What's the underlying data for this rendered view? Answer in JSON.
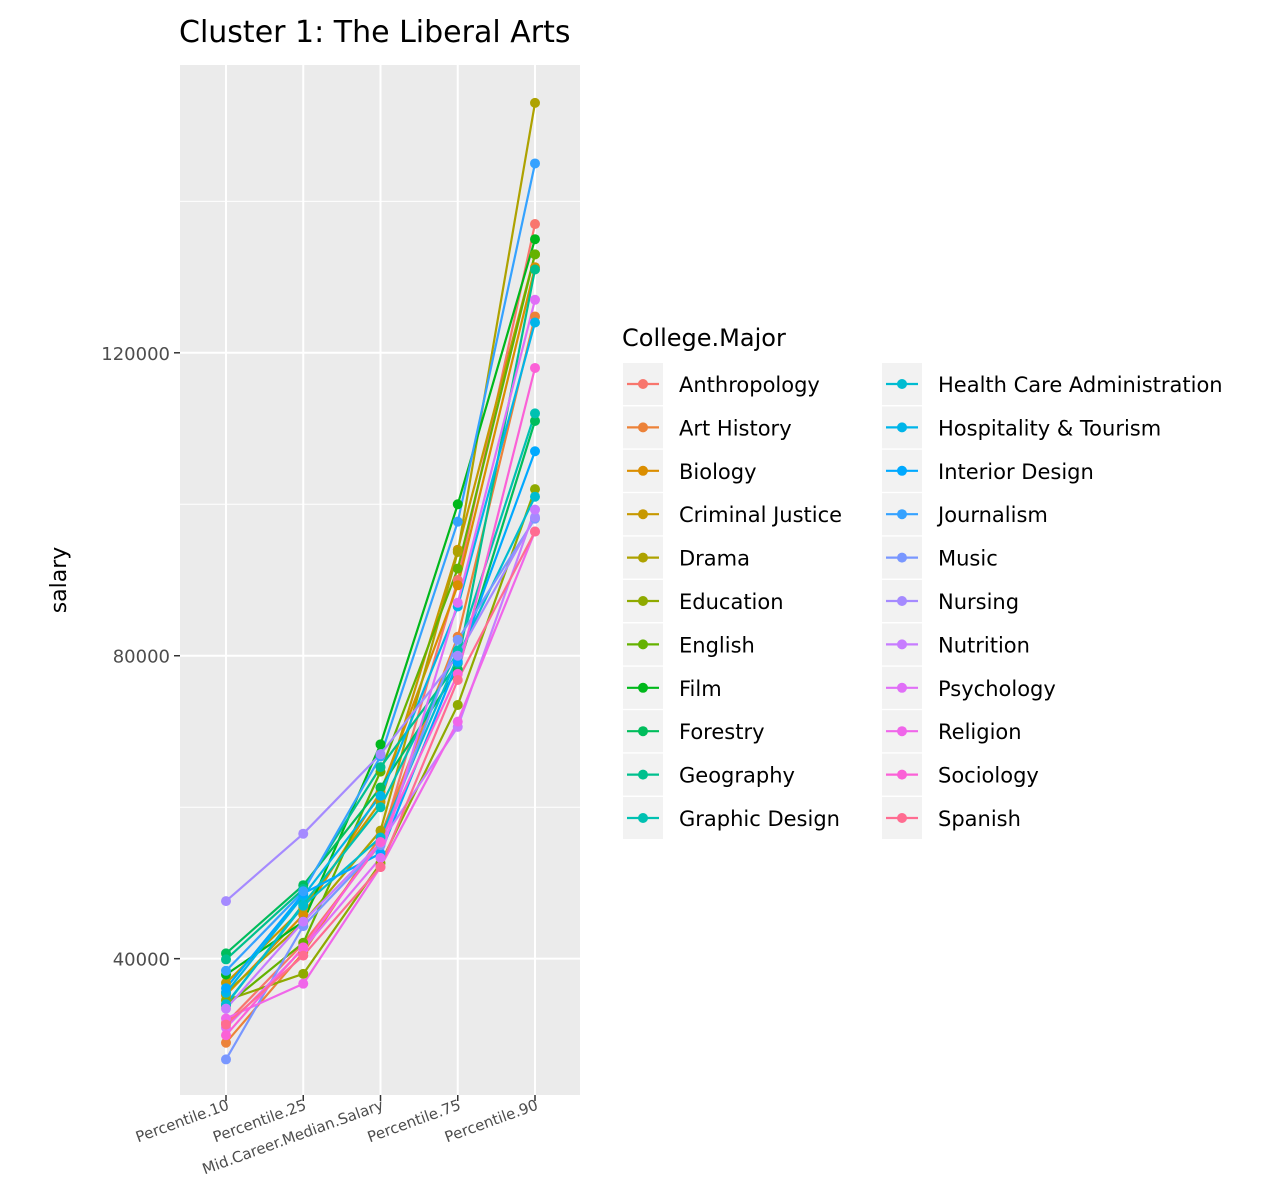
{
  "chart_data": {
    "type": "line",
    "title": "Cluster 1:  The Liberal Arts",
    "xlabel": "",
    "ylabel": "salary",
    "categories": [
      "Percentile.10",
      "Percentile.25",
      "Mid.Career.Median.Salary",
      "Percentile.75",
      "Percentile.90"
    ],
    "y_ticks": [
      40000,
      80000,
      120000
    ],
    "ylim": [
      22000,
      158000
    ],
    "grid": true,
    "legend_title": "College.Major",
    "legend_position": "right",
    "series": [
      {
        "name": "Anthropology",
        "color": "#F8766D",
        "values": [
          31500,
          42000,
          55200,
          90000,
          137000
        ]
      },
      {
        "name": "Art History",
        "color": "#EC8239",
        "values": [
          28900,
          40800,
          56200,
          82500,
          124800
        ]
      },
      {
        "name": "Biology",
        "color": "#DB8E00",
        "values": [
          35200,
          45800,
          62000,
          89300,
          131300
        ]
      },
      {
        "name": "Criminal Justice",
        "color": "#C79800",
        "values": [
          36800,
          46700,
          60700,
          94000,
          133000
        ]
      },
      {
        "name": "Drama",
        "color": "#AEA200",
        "values": [
          35500,
          44800,
          56900,
          93700,
          153000
        ]
      },
      {
        "name": "Education",
        "color": "#8FAA00",
        "values": [
          34500,
          38000,
          52600,
          73500,
          102000
        ]
      },
      {
        "name": "English",
        "color": "#64B200",
        "values": [
          33800,
          42100,
          64700,
          91500,
          133000
        ]
      },
      {
        "name": "Film",
        "color": "#00B81B",
        "values": [
          37900,
          44900,
          68300,
          100000,
          135000
        ]
      },
      {
        "name": "Forestry",
        "color": "#00BD5C",
        "values": [
          40700,
          49700,
          62600,
          78200,
          111000
        ]
      },
      {
        "name": "Geography",
        "color": "#00C08E",
        "values": [
          39900,
          49200,
          65300,
          79000,
          131000
        ]
      },
      {
        "name": "Graphic Design",
        "color": "#00C1B2",
        "values": [
          33900,
          47200,
          60000,
          80700,
          112000
        ]
      },
      {
        "name": "Health Care Administration",
        "color": "#00BCD1",
        "values": [
          34000,
          47000,
          56000,
          79900,
          101000
        ]
      },
      {
        "name": "Hospitality & Tourism",
        "color": "#00B5E9",
        "values": [
          35500,
          48300,
          61500,
          86500,
          124000
        ]
      },
      {
        "name": "Interior Design",
        "color": "#00A9FF",
        "values": [
          36100,
          48600,
          53900,
          79200,
          107000
        ]
      },
      {
        "name": "Journalism",
        "color": "#35A2FF",
        "values": [
          38400,
          48900,
          66700,
          97700,
          145000
        ]
      },
      {
        "name": "Music",
        "color": "#7997FF",
        "values": [
          26700,
          44300,
          55000,
          82100,
          98100
        ]
      },
      {
        "name": "Nursing",
        "color": "#A58AFF",
        "values": [
          47600,
          56500,
          67000,
          80000,
          98300
        ]
      },
      {
        "name": "Nutrition",
        "color": "#C77CFF",
        "values": [
          33400,
          44900,
          55300,
          70600,
          99300
        ]
      },
      {
        "name": "Psychology",
        "color": "#E06FF7",
        "values": [
          30900,
          41300,
          53300,
          87000,
          127000
        ]
      },
      {
        "name": "Religion",
        "color": "#F066EA",
        "values": [
          32100,
          36700,
          52100,
          71300,
          96400
        ]
      },
      {
        "name": "Sociology",
        "color": "#FB61D7",
        "values": [
          29900,
          41500,
          55400,
          77600,
          118000
        ]
      },
      {
        "name": "Spanish",
        "color": "#FF6C91",
        "values": [
          31300,
          40400,
          52100,
          76800,
          96400
        ]
      }
    ]
  }
}
